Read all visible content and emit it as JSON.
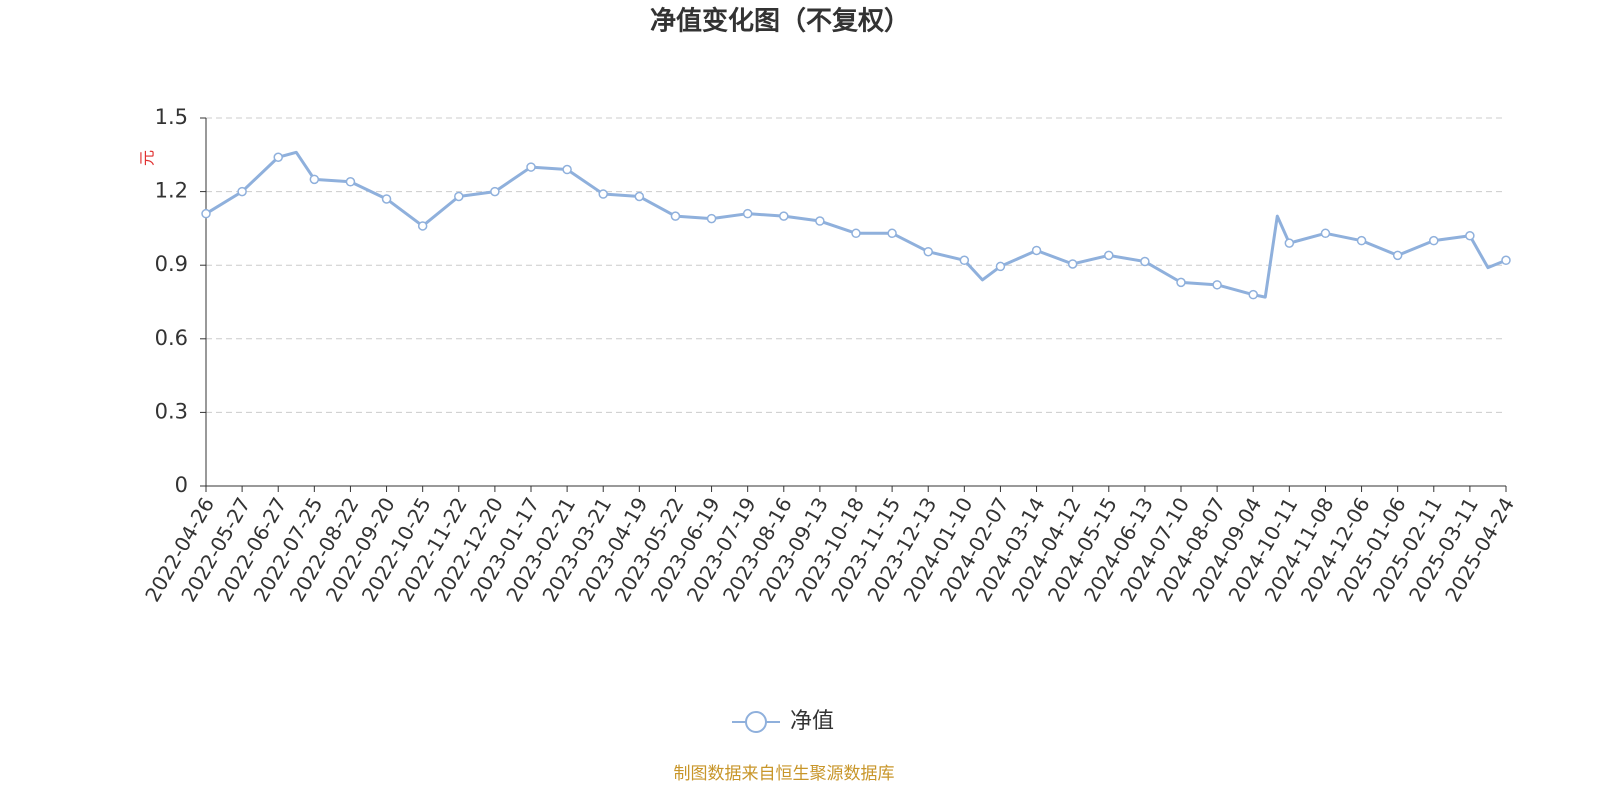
{
  "chart_data": {
    "type": "line",
    "title": "净值变化图（不复权）",
    "y_label": "元",
    "source": "制图数据来自恒生聚源数据库",
    "categories": [
      "2022-04-26",
      "2022-05-27",
      "2022-06-27",
      null,
      "2022-07-25",
      "2022-08-22",
      "2022-09-20",
      "2022-10-25",
      "2022-11-22",
      "2022-12-20",
      "2023-01-17",
      "2023-02-21",
      "2023-03-21",
      "2023-04-19",
      "2023-05-22",
      "2023-06-19",
      "2023-07-19",
      "2023-08-16",
      "2023-09-13",
      "2023-10-18",
      "2023-11-15",
      "2023-12-13",
      "2024-01-10",
      null,
      "2024-02-07",
      "2024-03-14",
      "2024-04-12",
      "2024-05-15",
      "2024-06-13",
      "2024-07-10",
      "2024-08-07",
      "2024-09-04",
      null,
      null,
      "2024-10-11",
      "2024-11-08",
      "2024-12-06",
      "2025-01-06",
      "2025-02-11",
      "2025-03-11",
      null,
      "2025-04-24"
    ],
    "series": [
      {
        "name": "净值",
        "color": "#8fb0dc",
        "values": [
          1.11,
          1.2,
          1.34,
          1.36,
          1.25,
          1.24,
          1.17,
          1.06,
          1.18,
          1.2,
          1.3,
          1.29,
          1.19,
          1.18,
          1.1,
          1.09,
          1.11,
          1.1,
          1.08,
          1.03,
          1.03,
          0.955,
          0.92,
          0.84,
          0.895,
          0.96,
          0.905,
          0.94,
          0.915,
          0.83,
          0.82,
          0.78,
          0.77,
          1.1,
          0.99,
          1.03,
          1.0,
          0.94,
          1.0,
          1.02,
          0.89,
          0.92
        ]
      }
    ],
    "ylim": [
      0,
      1.5
    ],
    "yticks": [
      0,
      {
        "value": 0.3,
        "label": "0.3"
      },
      {
        "value": 0.6,
        "label": "0.6"
      },
      {
        "value": 0.9,
        "label": "0.9"
      },
      {
        "value": 1.2,
        "label": "1.2"
      },
      {
        "value": 1.5,
        "label": "1.5"
      }
    ],
    "grid": true
  }
}
